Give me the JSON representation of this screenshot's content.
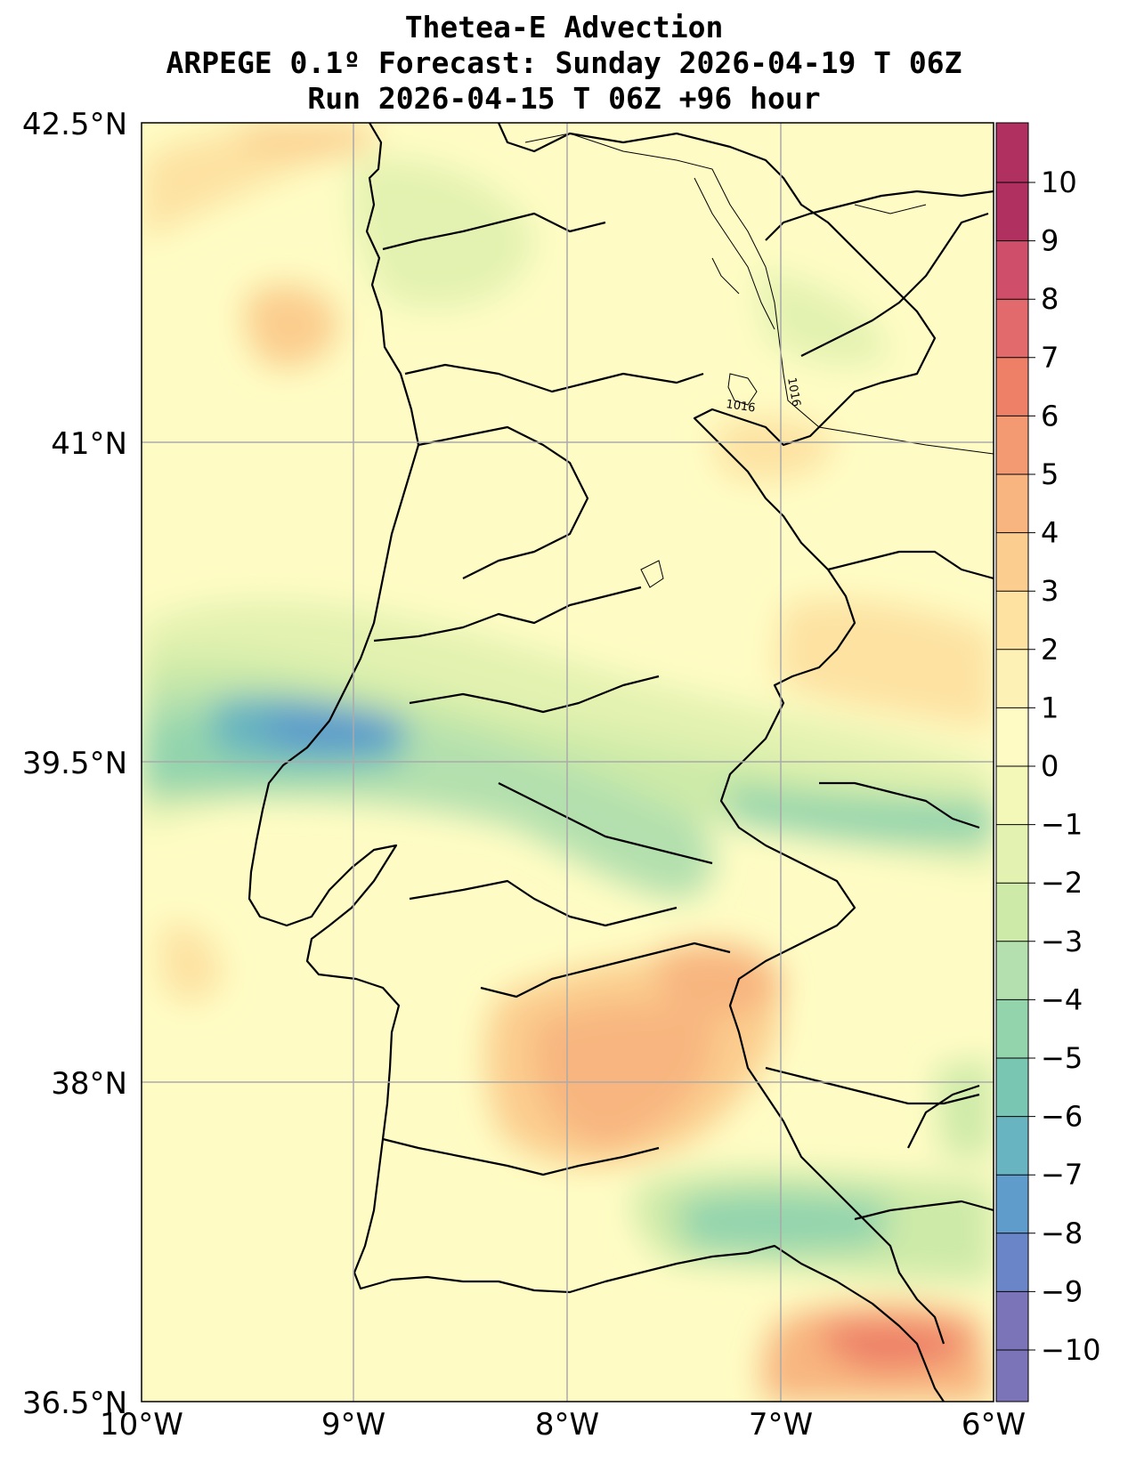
{
  "title": {
    "line1": "Thetea-E Advection",
    "line2": "ARPEGE 0.1º Forecast: Sunday 2026-04-19 T 06Z",
    "line3": "Run 2026-04-15 T 06Z +96 hour"
  },
  "map": {
    "lon_range": [
      -10,
      -6
    ],
    "lat_range": [
      36.5,
      42.5
    ],
    "lat_ticks": [
      {
        "value": 42.5,
        "label": "42.5°N"
      },
      {
        "value": 41,
        "label": "41°N"
      },
      {
        "value": 39.5,
        "label": "39.5°N"
      },
      {
        "value": 38,
        "label": "38°N"
      },
      {
        "value": 36.5,
        "label": "36.5°N"
      }
    ],
    "lon_ticks": [
      {
        "value": -10,
        "label": "10°W"
      },
      {
        "value": -9,
        "label": "9°W"
      },
      {
        "value": -8,
        "label": "8°W"
      },
      {
        "value": -7,
        "label": "7°W"
      },
      {
        "value": -6,
        "label": "6°W"
      }
    ],
    "grid": true,
    "isobar_labels": [
      "1016",
      "1016"
    ]
  },
  "colorbar": {
    "levels": [
      "10",
      "9",
      "8",
      "7",
      "6",
      "5",
      "4",
      "3",
      "2",
      "1",
      "0",
      "−1",
      "−2",
      "−3",
      "−4",
      "−5",
      "−6",
      "−7",
      "−8",
      "−9",
      "−10"
    ],
    "colors": [
      "#b0315f",
      "#cf4f6a",
      "#e26a6c",
      "#ee8068",
      "#f49a72",
      "#f8b57f",
      "#fbcd8e",
      "#fde2a2",
      "#fef1b5",
      "#fefcc4",
      "#f3f8b8",
      "#e3f2b0",
      "#cdeaa8",
      "#b3e0ae",
      "#93d4ad",
      "#79c7b2",
      "#68b4c0",
      "#5f9ccb",
      "#6a86c8",
      "#7c74b8"
    ]
  }
}
